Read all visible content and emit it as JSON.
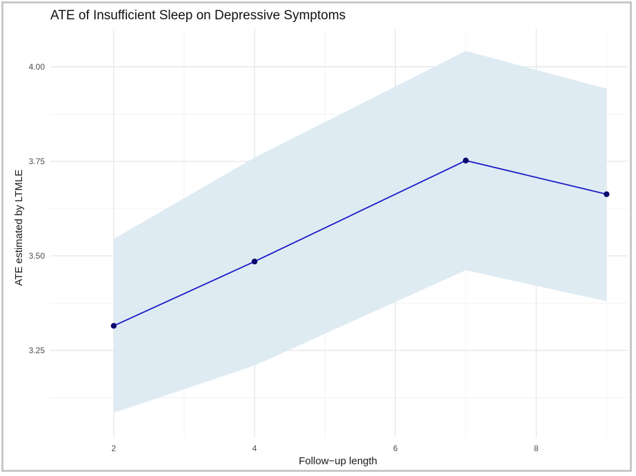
{
  "chart_data": {
    "type": "line",
    "title": "ATE of Insufficient Sleep on Depressive Symptoms",
    "xlabel": "Follow−up length",
    "ylabel": "ATE estimated by LTMLE",
    "x": [
      2,
      4,
      7,
      9
    ],
    "series": [
      {
        "values": [
          3.315,
          3.485,
          3.752,
          3.663
        ],
        "lower": [
          3.085,
          3.21,
          3.462,
          3.38
        ],
        "upper": [
          3.545,
          3.76,
          4.042,
          3.942
        ]
      }
    ],
    "xlim": [
      1.1,
      9.3
    ],
    "ylim": [
      3.02,
      4.1
    ],
    "xticks": [
      2,
      4,
      6,
      8
    ],
    "xtick_labels": [
      "2",
      "4",
      "6",
      "8"
    ],
    "yticks": [
      3.25,
      3.5,
      3.75,
      4.0
    ],
    "ytick_labels": [
      "3.25",
      "3.50",
      "3.75",
      "4.00"
    ],
    "grid": true,
    "colors": {
      "line": "#1a1ac8",
      "point": "#0a0a6e",
      "ribbon": "#dbe9f2",
      "grid_major": "#e6e6e6",
      "grid_minor": "#f2f2f2"
    }
  }
}
